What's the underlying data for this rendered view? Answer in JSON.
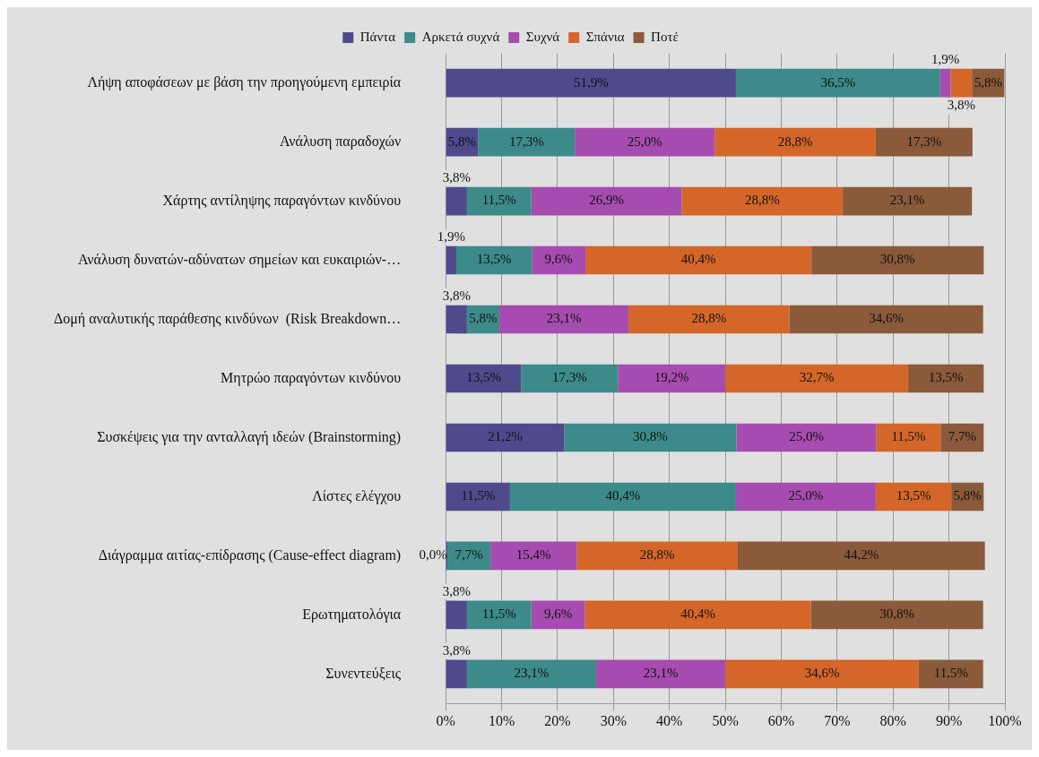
{
  "chart_data": {
    "type": "bar",
    "orientation": "horizontal",
    "stacked": true,
    "categories": [
      "Λήψη αποφάσεων με βάση την προηγούμενη εμπειρία",
      "Ανάλυση παραδοχών",
      "Χάρτης αντίληψης παραγόντων κινδύνου",
      "Ανάλυση δυνατών-αδύνατων σημείων και ευκαιριών-…",
      "Δομή αναλυτικής παράθεσης κινδύνων  (Risk Breakdown…",
      "Μητρώο παραγόντων κινδύνου",
      "Συσκέψεις για την ανταλλαγή ιδεών (Brainstorming)",
      "Λίστες ελέγχου",
      "Διάγραμμα αιτίας-επίδρασης (Cause-effect diagram)",
      "Ερωτηματολόγια",
      "Συνεντεύξεις"
    ],
    "series": [
      {
        "name": "Πάντα",
        "color": "#4f4a8c",
        "values": [
          51.9,
          5.8,
          3.8,
          1.9,
          3.8,
          13.5,
          21.2,
          11.5,
          0.0,
          3.8,
          3.8
        ],
        "value_labels": [
          "51,9%",
          "5,8%",
          "3,8%",
          "1,9%",
          "3,8%",
          "13,5%",
          "21,2%",
          "11,5%",
          "0,0%",
          "3,8%",
          "3,8%"
        ]
      },
      {
        "name": "Αρκετά συχνά",
        "color": "#3d8a8a",
        "values": [
          36.5,
          17.3,
          11.5,
          13.5,
          5.8,
          17.3,
          30.8,
          40.4,
          7.7,
          11.5,
          23.1
        ],
        "value_labels": [
          "36,5%",
          "17,3%",
          "11,5%",
          "13,5%",
          "5,8%",
          "17,3%",
          "30,8%",
          "40,4%",
          "7,7%",
          "11,5%",
          "23,1%"
        ]
      },
      {
        "name": "Συχνά",
        "color": "#a64cb0",
        "values": [
          1.9,
          25.0,
          26.9,
          9.6,
          23.1,
          19.2,
          25.0,
          25.0,
          15.4,
          9.6,
          23.1
        ],
        "value_labels": [
          "1,9%",
          "25,0%",
          "26,9%",
          "9,6%",
          "23,1%",
          "19,2%",
          "25,0%",
          "25,0%",
          "15,4%",
          "9,6%",
          "23,1%"
        ]
      },
      {
        "name": "Σπάνια",
        "color": "#d4662a",
        "values": [
          3.8,
          28.8,
          28.8,
          40.4,
          28.8,
          32.7,
          11.5,
          13.5,
          28.8,
          40.4,
          34.6
        ],
        "value_labels": [
          "3,8%",
          "28,8%",
          "28,8%",
          "40,4%",
          "28,8%",
          "32,7%",
          "11,5%",
          "13,5%",
          "28,8%",
          "40,4%",
          "34,6%"
        ]
      },
      {
        "name": "Ποτέ",
        "color": "#8a5a3a",
        "values": [
          5.8,
          17.3,
          23.1,
          30.8,
          34.6,
          13.5,
          7.7,
          5.8,
          44.2,
          30.8,
          11.5
        ],
        "value_labels": [
          "5,8%",
          "17,3%",
          "23,1%",
          "30,8%",
          "34,6%",
          "13,5%",
          "7,7%",
          "5,8%",
          "44,2%",
          "30,8%",
          "11,5%"
        ]
      }
    ],
    "xlim": [
      0,
      100
    ],
    "xticks": [
      {
        "value": 0,
        "label": "0%"
      },
      {
        "value": 10,
        "label": "10%"
      },
      {
        "value": 20,
        "label": "20%"
      },
      {
        "value": 30,
        "label": "30%"
      },
      {
        "value": 40,
        "label": "40%"
      },
      {
        "value": 50,
        "label": "50%"
      },
      {
        "value": 60,
        "label": "60%"
      },
      {
        "value": 70,
        "label": "70%"
      },
      {
        "value": 80,
        "label": "80%"
      },
      {
        "value": 90,
        "label": "90%"
      },
      {
        "value": 100,
        "label": "100%"
      }
    ],
    "grid": "x",
    "legend": "top"
  }
}
